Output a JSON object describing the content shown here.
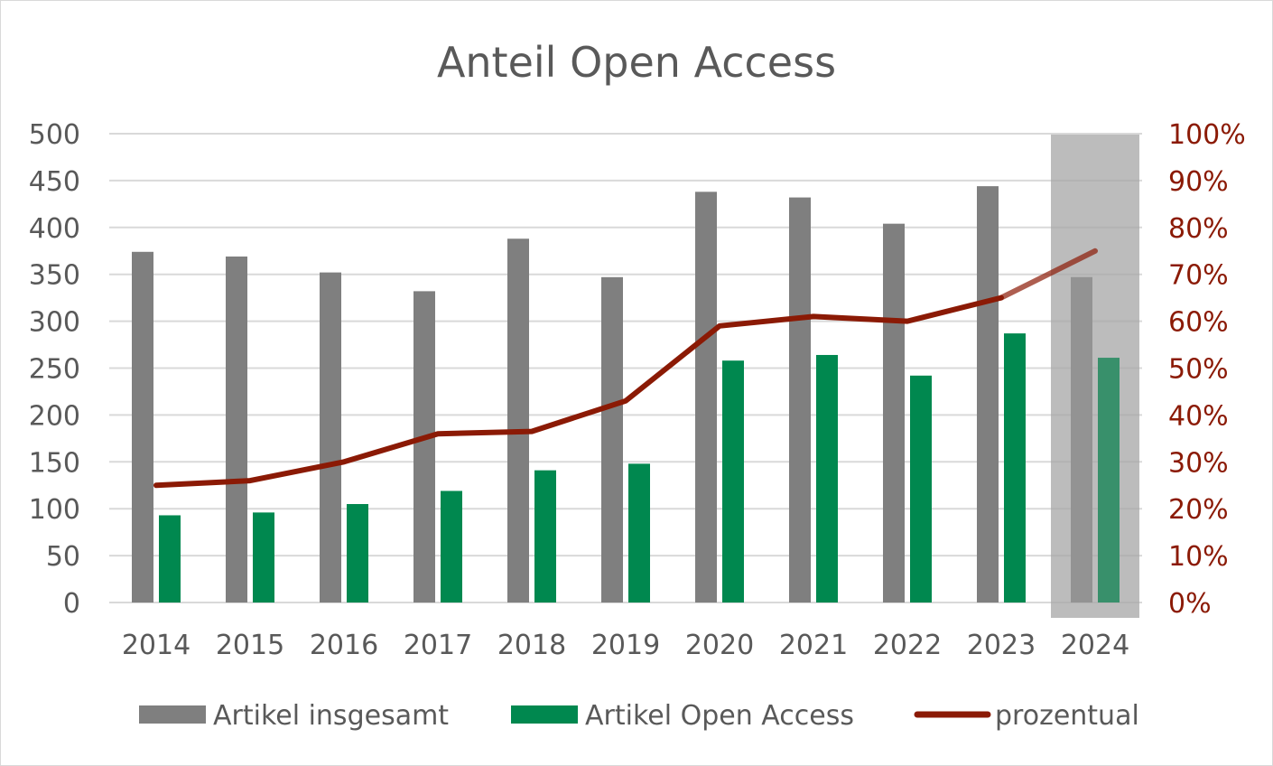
{
  "chart_data": {
    "type": "bar",
    "title": "Anteil Open Access",
    "categories": [
      "2014",
      "2015",
      "2016",
      "2017",
      "2018",
      "2019",
      "2020",
      "2021",
      "2022",
      "2023",
      "2024"
    ],
    "series": [
      {
        "name": "Artikel insgesamt",
        "kind": "bar",
        "axis": "left",
        "color": "#7f7f7f",
        "values": [
          374,
          369,
          352,
          332,
          388,
          347,
          438,
          432,
          404,
          444,
          347
        ]
      },
      {
        "name": "Artikel Open Access",
        "kind": "bar",
        "axis": "left",
        "color": "#00884f",
        "values": [
          93,
          96,
          105,
          119,
          141,
          148,
          258,
          264,
          242,
          287,
          261
        ]
      },
      {
        "name": "prozentual",
        "kind": "line",
        "axis": "right",
        "color": "#8b1a05",
        "values": [
          0.25,
          0.26,
          0.3,
          0.36,
          0.365,
          0.43,
          0.59,
          0.61,
          0.6,
          0.65,
          0.75
        ]
      }
    ],
    "y_left": {
      "min": 0,
      "max": 500,
      "ticks": [
        "0",
        "50",
        "100",
        "150",
        "200",
        "250",
        "300",
        "350",
        "400",
        "450",
        "500"
      ]
    },
    "y_right": {
      "min": 0,
      "max": 1,
      "ticks": [
        "0%",
        "10%",
        "20%",
        "30%",
        "40%",
        "50%",
        "60%",
        "70%",
        "80%",
        "90%",
        "100%"
      ]
    },
    "highlight_category": "2024",
    "highlight_color": "#a6a6a6",
    "grid": true,
    "legend_position": "bottom"
  }
}
